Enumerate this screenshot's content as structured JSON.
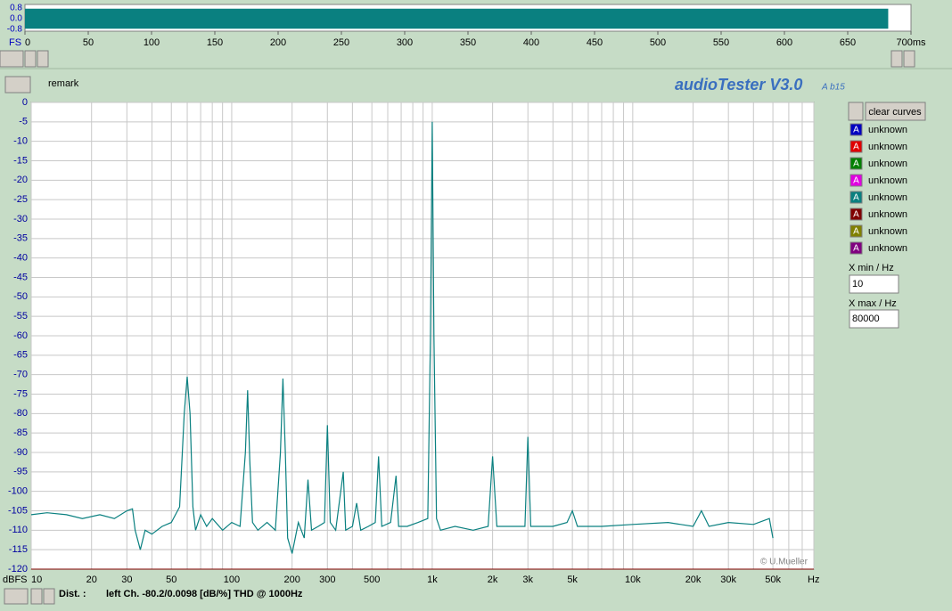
{
  "chart_data": [
    {
      "type": "line",
      "log_x": true,
      "grid": true,
      "color": "#0a8080",
      "x_label": "Hz",
      "y_label": "dBFS",
      "xlim": [
        10,
        80000
      ],
      "ylim": [
        -120,
        0
      ],
      "yticks": [
        0,
        -5,
        -10,
        -15,
        -20,
        -25,
        -30,
        -35,
        -40,
        -45,
        -50,
        -55,
        -60,
        -65,
        -70,
        -75,
        -80,
        -85,
        -90,
        -95,
        -100,
        -105,
        -110,
        -115,
        -120
      ],
      "xticks": [
        10,
        20,
        30,
        50,
        100,
        200,
        300,
        500,
        {
          "value": 1000,
          "label": "1k"
        },
        {
          "value": 2000,
          "label": "2k"
        },
        {
          "value": 3000,
          "label": "3k"
        },
        {
          "value": 5000,
          "label": "5k"
        },
        {
          "value": 10000,
          "label": "10k"
        },
        {
          "value": 20000,
          "label": "20k"
        },
        {
          "value": 30000,
          "label": "30k"
        },
        {
          "value": 50000,
          "label": "50k"
        }
      ],
      "xgrid": [
        10,
        20,
        30,
        40,
        50,
        60,
        70,
        80,
        90,
        100,
        200,
        300,
        400,
        500,
        600,
        700,
        800,
        900,
        1000,
        2000,
        3000,
        4000,
        5000,
        6000,
        7000,
        8000,
        9000,
        10000,
        20000,
        30000,
        40000,
        50000,
        60000,
        70000,
        80000
      ],
      "x": [
        10,
        12,
        15,
        18,
        22,
        26,
        30,
        32,
        33,
        35,
        37,
        40,
        45,
        50,
        55,
        58,
        60,
        62,
        64,
        66,
        70,
        75,
        80,
        90,
        100,
        110,
        117,
        120,
        123,
        127,
        135,
        150,
        165,
        175,
        180,
        185,
        190,
        200,
        215,
        230,
        240,
        250,
        270,
        290,
        300,
        310,
        330,
        360,
        370,
        400,
        420,
        440,
        480,
        520,
        540,
        560,
        620,
        660,
        680,
        750,
        850,
        950,
        980,
        1000,
        1020,
        1050,
        1100,
        1300,
        1600,
        1900,
        2000,
        2100,
        2500,
        2900,
        3000,
        3100,
        4000,
        4700,
        5000,
        5300,
        7000,
        10000,
        15000,
        20000,
        22000,
        24000,
        30000,
        40000,
        48000,
        50000
      ],
      "values": [
        -106,
        -105.5,
        -106,
        -107,
        -106,
        -107,
        -105,
        -104.5,
        -110,
        -115,
        -110,
        -111,
        -109,
        -108,
        -104,
        -80,
        -70.5,
        -80,
        -104,
        -110,
        -106,
        -109,
        -107,
        -110,
        -108,
        -109,
        -90,
        -74,
        -92,
        -108,
        -110,
        -108,
        -110,
        -90,
        -71,
        -90,
        -112,
        -116,
        -108,
        -112,
        -97,
        -110,
        -109,
        -108,
        -83,
        -108,
        -110,
        -95,
        -110,
        -109,
        -103,
        -110,
        -109,
        -108,
        -91,
        -109,
        -108,
        -96,
        -109,
        -109,
        -108,
        -107,
        -60,
        -5,
        -60,
        -107,
        -110,
        -109,
        -110,
        -109,
        -91,
        -109,
        -109,
        -109,
        -86,
        -109,
        -109,
        -108,
        -105,
        -109,
        -109,
        -108.5,
        -108,
        -109,
        -105,
        -109,
        -108,
        -108.5,
        -107,
        -112
      ]
    },
    {
      "type": "area",
      "color": "#0a8080",
      "xlim": [
        0,
        700
      ],
      "ylim": [
        -0.8,
        0.8
      ],
      "yticks": [
        0.8,
        {
          "value": 0,
          "label": "0.0"
        },
        -0.8
      ],
      "xticks": [
        0,
        50,
        100,
        150,
        200,
        250,
        300,
        350,
        400,
        450,
        500,
        550,
        600,
        650,
        {
          "value": 700,
          "label": "700ms"
        }
      ],
      "x_label": "FS",
      "x": [
        0,
        682
      ],
      "upper": [
        0.75,
        0.75
      ],
      "lower": [
        -0.75,
        -0.75
      ]
    }
  ],
  "ui": {
    "remark": "remark",
    "app_title": "audioTester V3.0",
    "version": "A b15",
    "clear_button": "clear curves",
    "legend_icon": "A",
    "legend": [
      {
        "label": "unknown",
        "color": "#0000c0"
      },
      {
        "label": "unknown",
        "color": "#e00000"
      },
      {
        "label": "unknown",
        "color": "#008000"
      },
      {
        "label": "unknown",
        "color": "#e000e0"
      },
      {
        "label": "unknown",
        "color": "#0a8080"
      },
      {
        "label": "unknown",
        "color": "#800000"
      },
      {
        "label": "unknown",
        "color": "#808000"
      },
      {
        "label": "unknown",
        "color": "#800080"
      }
    ],
    "xmin_label": "X min / Hz",
    "xmax_label": "X max / Hz",
    "status_label": "Dist. :",
    "status_text": "left Ch. -80.2/0.0098 [dB/%] THD @ 1000Hz",
    "copyright": "© U.Mueller"
  }
}
